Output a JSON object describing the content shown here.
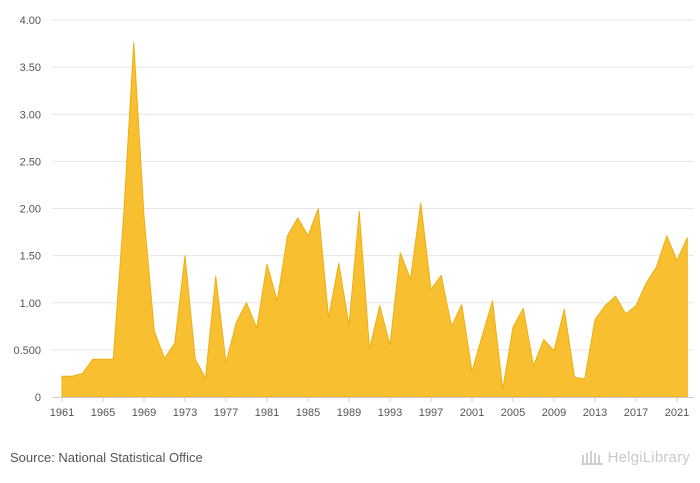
{
  "chart_data": {
    "type": "area",
    "title": "",
    "xlabel": "",
    "ylabel": "",
    "x": [
      1961,
      1962,
      1963,
      1964,
      1965,
      1966,
      1967,
      1968,
      1969,
      1970,
      1971,
      1972,
      1973,
      1974,
      1975,
      1976,
      1977,
      1978,
      1979,
      1980,
      1981,
      1982,
      1983,
      1984,
      1985,
      1986,
      1987,
      1988,
      1989,
      1990,
      1991,
      1992,
      1993,
      1994,
      1995,
      1996,
      1997,
      1998,
      1999,
      2000,
      2001,
      2002,
      2003,
      2004,
      2005,
      2006,
      2007,
      2008,
      2009,
      2010,
      2011,
      2012,
      2013,
      2014,
      2015,
      2016,
      2017,
      2018,
      2019,
      2020,
      2021,
      2022
    ],
    "series": [
      {
        "values": [
          0.22,
          0.22,
          0.25,
          0.4,
          0.4,
          0.4,
          1.9,
          3.76,
          1.92,
          0.7,
          0.41,
          0.57,
          1.5,
          0.4,
          0.2,
          1.28,
          0.36,
          0.79,
          1.0,
          0.73,
          1.41,
          1.02,
          1.71,
          1.9,
          1.71,
          2.0,
          0.84,
          1.42,
          0.76,
          1.97,
          0.51,
          0.97,
          0.55,
          1.53,
          1.25,
          2.06,
          1.14,
          1.29,
          0.75,
          0.98,
          0.27,
          0.65,
          1.02,
          0.08,
          0.74,
          0.94,
          0.33,
          0.61,
          0.49,
          0.93,
          0.21,
          0.19,
          0.82,
          0.97,
          1.07,
          0.88,
          0.97,
          1.21,
          1.38,
          1.71,
          1.45,
          1.69
        ]
      }
    ],
    "ylim": [
      0,
      4.0
    ],
    "yticks": [
      0,
      0.5,
      1.0,
      1.5,
      2.0,
      2.5,
      3.0,
      3.5,
      4.0
    ],
    "ytick_labels": [
      "0",
      "0.500",
      "1.00",
      "1.50",
      "2.00",
      "2.50",
      "3.00",
      "3.50",
      "4.00"
    ],
    "xtick_labels": [
      "1961",
      "1965",
      "1969",
      "1973",
      "1977",
      "1981",
      "1985",
      "1989",
      "1993",
      "1997",
      "2001",
      "2005",
      "2009",
      "2013",
      "2017",
      "2021"
    ],
    "grid": true,
    "colors": {
      "fill": "#f8c030",
      "stroke": "#eeae12",
      "grid": "#e6e6e6",
      "axis": "#cccccc"
    }
  },
  "footer": {
    "source": "Source: National Statistical Office",
    "logo_text": "HelgiLibrary"
  }
}
